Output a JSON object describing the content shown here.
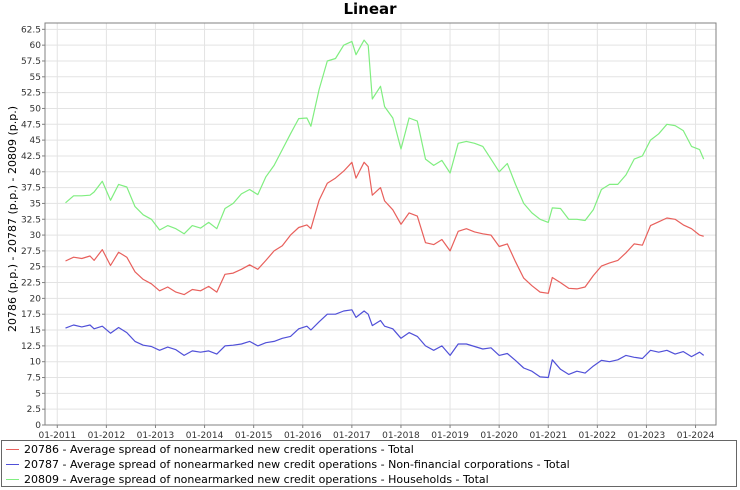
{
  "chart_data": {
    "type": "line",
    "title": "Linear",
    "xlabel": "",
    "ylabel": "20786 (p.p.) - 20787 (p.p.) - 20809 (p.p.)",
    "x_tick_labels": [
      "01-2011",
      "01-2012",
      "01-2013",
      "01-2014",
      "01-2015",
      "01-2016",
      "01-2017",
      "01-2018",
      "01-2019",
      "01-2020",
      "01-2021",
      "01-2022",
      "01-2023",
      "01-2024"
    ],
    "y_tick_labels": [
      "0",
      "2.5",
      "5",
      "7.5",
      "10",
      "12.5",
      "15",
      "17.5",
      "20",
      "22.5",
      "25",
      "27.5",
      "30",
      "32.5",
      "35",
      "37.5",
      "40",
      "42.5",
      "45",
      "47.5",
      "50",
      "52.5",
      "55",
      "57.5",
      "60",
      "62.5"
    ],
    "ylim": [
      0,
      63.5
    ],
    "xlim": [
      "2010-10",
      "2024-06"
    ],
    "grid": true,
    "legend_position": "bottom",
    "series": [
      {
        "name": "20786 - Average spread of nonearmarked new credit operations - Total",
        "color": "#e8605c",
        "points": [
          [
            "2011-03",
            25.9
          ],
          [
            "2011-05",
            26.5
          ],
          [
            "2011-07",
            26.3
          ],
          [
            "2011-09",
            26.7
          ],
          [
            "2011-10",
            26.0
          ],
          [
            "2011-12",
            27.7
          ],
          [
            "2012-02",
            25.2
          ],
          [
            "2012-04",
            27.3
          ],
          [
            "2012-06",
            26.5
          ],
          [
            "2012-08",
            24.2
          ],
          [
            "2012-10",
            23.0
          ],
          [
            "2012-12",
            22.3
          ],
          [
            "2013-02",
            21.2
          ],
          [
            "2013-04",
            21.8
          ],
          [
            "2013-06",
            21.0
          ],
          [
            "2013-08",
            20.6
          ],
          [
            "2013-10",
            21.4
          ],
          [
            "2013-12",
            21.2
          ],
          [
            "2014-02",
            21.9
          ],
          [
            "2014-04",
            21.0
          ],
          [
            "2014-06",
            23.8
          ],
          [
            "2014-08",
            24.0
          ],
          [
            "2014-10",
            24.6
          ],
          [
            "2014-12",
            25.3
          ],
          [
            "2015-02",
            24.6
          ],
          [
            "2015-04",
            26.0
          ],
          [
            "2015-06",
            27.5
          ],
          [
            "2015-08",
            28.3
          ],
          [
            "2015-10",
            30.0
          ],
          [
            "2015-12",
            31.2
          ],
          [
            "2016-02",
            31.6
          ],
          [
            "2016-03",
            31.0
          ],
          [
            "2016-05",
            35.5
          ],
          [
            "2016-07",
            38.2
          ],
          [
            "2016-09",
            39.0
          ],
          [
            "2016-11",
            40.1
          ],
          [
            "2017-01",
            41.5
          ],
          [
            "2017-02",
            39.0
          ],
          [
            "2017-04",
            41.5
          ],
          [
            "2017-05",
            40.8
          ],
          [
            "2017-06",
            36.3
          ],
          [
            "2017-08",
            37.5
          ],
          [
            "2017-09",
            35.4
          ],
          [
            "2017-11",
            34.0
          ],
          [
            "2018-01",
            31.7
          ],
          [
            "2018-03",
            33.5
          ],
          [
            "2018-05",
            33.0
          ],
          [
            "2018-07",
            28.8
          ],
          [
            "2018-09",
            28.5
          ],
          [
            "2018-11",
            29.3
          ],
          [
            "2019-01",
            27.5
          ],
          [
            "2019-03",
            30.6
          ],
          [
            "2019-05",
            31.0
          ],
          [
            "2019-07",
            30.5
          ],
          [
            "2019-09",
            30.2
          ],
          [
            "2019-11",
            30.0
          ],
          [
            "2020-01",
            28.2
          ],
          [
            "2020-03",
            28.6
          ],
          [
            "2020-05",
            25.8
          ],
          [
            "2020-07",
            23.2
          ],
          [
            "2020-09",
            22.0
          ],
          [
            "2020-11",
            21.0
          ],
          [
            "2021-01",
            20.8
          ],
          [
            "2021-02",
            23.3
          ],
          [
            "2021-04",
            22.5
          ],
          [
            "2021-06",
            21.6
          ],
          [
            "2021-08",
            21.5
          ],
          [
            "2021-10",
            21.8
          ],
          [
            "2021-12",
            23.6
          ],
          [
            "2022-02",
            25.1
          ],
          [
            "2022-04",
            25.6
          ],
          [
            "2022-06",
            26.0
          ],
          [
            "2022-08",
            27.2
          ],
          [
            "2022-10",
            28.6
          ],
          [
            "2022-12",
            28.4
          ],
          [
            "2023-02",
            31.5
          ],
          [
            "2023-04",
            32.1
          ],
          [
            "2023-06",
            32.7
          ],
          [
            "2023-08",
            32.5
          ],
          [
            "2023-10",
            31.6
          ],
          [
            "2023-12",
            31.0
          ],
          [
            "2024-02",
            30.0
          ],
          [
            "2024-03",
            29.8
          ]
        ]
      },
      {
        "name": "20787 - Average spread of nonearmarked new credit operations - Non-financial corporations - Total",
        "color": "#5050d8",
        "points": [
          [
            "2011-03",
            15.3
          ],
          [
            "2011-05",
            15.8
          ],
          [
            "2011-07",
            15.5
          ],
          [
            "2011-09",
            15.8
          ],
          [
            "2011-10",
            15.2
          ],
          [
            "2011-12",
            15.6
          ],
          [
            "2012-02",
            14.5
          ],
          [
            "2012-04",
            15.4
          ],
          [
            "2012-06",
            14.6
          ],
          [
            "2012-08",
            13.2
          ],
          [
            "2012-10",
            12.6
          ],
          [
            "2012-12",
            12.4
          ],
          [
            "2013-02",
            11.8
          ],
          [
            "2013-04",
            12.3
          ],
          [
            "2013-06",
            11.9
          ],
          [
            "2013-08",
            11.0
          ],
          [
            "2013-10",
            11.7
          ],
          [
            "2013-12",
            11.5
          ],
          [
            "2014-02",
            11.7
          ],
          [
            "2014-04",
            11.2
          ],
          [
            "2014-06",
            12.5
          ],
          [
            "2014-08",
            12.6
          ],
          [
            "2014-10",
            12.8
          ],
          [
            "2014-12",
            13.2
          ],
          [
            "2015-02",
            12.5
          ],
          [
            "2015-04",
            13.0
          ],
          [
            "2015-06",
            13.2
          ],
          [
            "2015-08",
            13.7
          ],
          [
            "2015-10",
            14.0
          ],
          [
            "2015-12",
            15.2
          ],
          [
            "2016-02",
            15.6
          ],
          [
            "2016-03",
            15.0
          ],
          [
            "2016-05",
            16.3
          ],
          [
            "2016-07",
            17.5
          ],
          [
            "2016-09",
            17.5
          ],
          [
            "2016-11",
            18.0
          ],
          [
            "2017-01",
            18.2
          ],
          [
            "2017-02",
            17.0
          ],
          [
            "2017-04",
            18.0
          ],
          [
            "2017-05",
            17.5
          ],
          [
            "2017-06",
            15.7
          ],
          [
            "2017-08",
            16.5
          ],
          [
            "2017-09",
            15.6
          ],
          [
            "2017-11",
            15.2
          ],
          [
            "2018-01",
            13.7
          ],
          [
            "2018-03",
            14.6
          ],
          [
            "2018-05",
            14.0
          ],
          [
            "2018-07",
            12.5
          ],
          [
            "2018-09",
            11.8
          ],
          [
            "2018-11",
            12.5
          ],
          [
            "2019-01",
            11.0
          ],
          [
            "2019-03",
            12.8
          ],
          [
            "2019-05",
            12.8
          ],
          [
            "2019-07",
            12.4
          ],
          [
            "2019-09",
            12.0
          ],
          [
            "2019-11",
            12.2
          ],
          [
            "2020-01",
            11.0
          ],
          [
            "2020-03",
            11.3
          ],
          [
            "2020-05",
            10.2
          ],
          [
            "2020-07",
            9.0
          ],
          [
            "2020-09",
            8.5
          ],
          [
            "2020-11",
            7.6
          ],
          [
            "2021-01",
            7.5
          ],
          [
            "2021-02",
            10.3
          ],
          [
            "2021-04",
            8.8
          ],
          [
            "2021-06",
            8.0
          ],
          [
            "2021-08",
            8.5
          ],
          [
            "2021-10",
            8.2
          ],
          [
            "2021-12",
            9.3
          ],
          [
            "2022-02",
            10.2
          ],
          [
            "2022-04",
            10.0
          ],
          [
            "2022-06",
            10.3
          ],
          [
            "2022-08",
            11.0
          ],
          [
            "2022-10",
            10.7
          ],
          [
            "2022-12",
            10.5
          ],
          [
            "2023-02",
            11.8
          ],
          [
            "2023-04",
            11.5
          ],
          [
            "2023-06",
            11.8
          ],
          [
            "2023-08",
            11.2
          ],
          [
            "2023-10",
            11.6
          ],
          [
            "2023-12",
            10.8
          ],
          [
            "2024-02",
            11.5
          ],
          [
            "2024-03",
            11.0
          ]
        ]
      },
      {
        "name": "20809 - Average spread of nonearmarked new credit operations - Households - Total",
        "color": "#80ee80",
        "points": [
          [
            "2011-03",
            35.1
          ],
          [
            "2011-05",
            36.2
          ],
          [
            "2011-07",
            36.2
          ],
          [
            "2011-09",
            36.3
          ],
          [
            "2011-10",
            36.8
          ],
          [
            "2011-12",
            38.5
          ],
          [
            "2012-02",
            35.5
          ],
          [
            "2012-04",
            38.0
          ],
          [
            "2012-06",
            37.6
          ],
          [
            "2012-08",
            34.5
          ],
          [
            "2012-10",
            33.2
          ],
          [
            "2012-12",
            32.5
          ],
          [
            "2013-02",
            30.8
          ],
          [
            "2013-04",
            31.5
          ],
          [
            "2013-06",
            31.0
          ],
          [
            "2013-08",
            30.2
          ],
          [
            "2013-10",
            31.5
          ],
          [
            "2013-12",
            31.1
          ],
          [
            "2014-02",
            32.0
          ],
          [
            "2014-04",
            31.0
          ],
          [
            "2014-06",
            34.2
          ],
          [
            "2014-08",
            35.0
          ],
          [
            "2014-10",
            36.5
          ],
          [
            "2014-12",
            37.2
          ],
          [
            "2015-02",
            36.4
          ],
          [
            "2015-04",
            39.2
          ],
          [
            "2015-06",
            41.0
          ],
          [
            "2015-08",
            43.5
          ],
          [
            "2015-10",
            46.0
          ],
          [
            "2015-12",
            48.4
          ],
          [
            "2016-02",
            48.5
          ],
          [
            "2016-03",
            47.2
          ],
          [
            "2016-05",
            53.0
          ],
          [
            "2016-07",
            57.5
          ],
          [
            "2016-09",
            57.9
          ],
          [
            "2016-11",
            60.0
          ],
          [
            "2017-01",
            60.6
          ],
          [
            "2017-02",
            58.5
          ],
          [
            "2017-04",
            60.8
          ],
          [
            "2017-05",
            60.0
          ],
          [
            "2017-06",
            51.5
          ],
          [
            "2017-08",
            53.5
          ],
          [
            "2017-09",
            50.3
          ],
          [
            "2017-11",
            48.5
          ],
          [
            "2018-01",
            43.6
          ],
          [
            "2018-03",
            48.5
          ],
          [
            "2018-05",
            48.0
          ],
          [
            "2018-07",
            42.0
          ],
          [
            "2018-09",
            41.0
          ],
          [
            "2018-11",
            41.8
          ],
          [
            "2019-01",
            39.8
          ],
          [
            "2019-03",
            44.5
          ],
          [
            "2019-05",
            44.8
          ],
          [
            "2019-07",
            44.5
          ],
          [
            "2019-09",
            44.0
          ],
          [
            "2019-11",
            42.0
          ],
          [
            "2020-01",
            40.0
          ],
          [
            "2020-03",
            41.3
          ],
          [
            "2020-05",
            38.0
          ],
          [
            "2020-07",
            35.0
          ],
          [
            "2020-09",
            33.5
          ],
          [
            "2020-11",
            32.5
          ],
          [
            "2021-01",
            32.0
          ],
          [
            "2021-02",
            34.3
          ],
          [
            "2021-04",
            34.2
          ],
          [
            "2021-06",
            32.5
          ],
          [
            "2021-08",
            32.5
          ],
          [
            "2021-10",
            32.3
          ],
          [
            "2021-12",
            34.0
          ],
          [
            "2022-02",
            37.2
          ],
          [
            "2022-04",
            38.0
          ],
          [
            "2022-06",
            38.0
          ],
          [
            "2022-08",
            39.5
          ],
          [
            "2022-10",
            42.0
          ],
          [
            "2022-12",
            42.5
          ],
          [
            "2023-02",
            45.0
          ],
          [
            "2023-04",
            46.0
          ],
          [
            "2023-06",
            47.5
          ],
          [
            "2023-08",
            47.3
          ],
          [
            "2023-10",
            46.5
          ],
          [
            "2023-12",
            44.0
          ],
          [
            "2024-02",
            43.5
          ],
          [
            "2024-03",
            42.0
          ]
        ]
      }
    ]
  }
}
